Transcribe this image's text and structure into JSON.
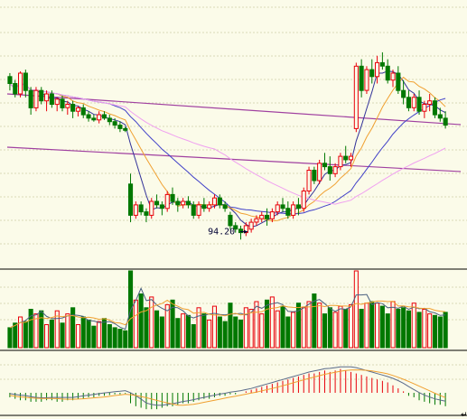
{
  "colors": {
    "background": "#fbfbe9",
    "grid": "#d8d8b8",
    "panel_border": "#000000",
    "up": "#e8000a",
    "down": "#007800",
    "ma_short": "#333399",
    "ma_mid": "#f0a030",
    "ma_long": "#4040c8",
    "ma_xlong": "#f0a0f0",
    "trend": "#a040a0",
    "vol_ma_a": "#4a6080",
    "vol_ma_b": "#f0a030",
    "macd_dif": "#5a6a8a",
    "macd_dea": "#f0a030"
  },
  "chart_data": {
    "type": "candlestick",
    "annotations": [
      {
        "text": "94.20",
        "arrow": "right",
        "points_to_candle": 46
      }
    ],
    "price_ylim": [
      70,
      220
    ],
    "candles": [
      [
        180,
        182,
        172,
        176
      ],
      [
        176,
        178,
        168,
        170
      ],
      [
        170,
        183,
        168,
        182
      ],
      [
        182,
        184,
        168,
        172
      ],
      [
        172,
        174,
        158,
        162
      ],
      [
        162,
        174,
        160,
        172
      ],
      [
        172,
        174,
        164,
        166
      ],
      [
        166,
        172,
        160,
        170
      ],
      [
        170,
        172,
        162,
        164
      ],
      [
        164,
        168,
        160,
        167
      ],
      [
        167,
        169,
        160,
        162
      ],
      [
        162,
        166,
        158,
        164
      ],
      [
        164,
        166,
        156,
        160
      ],
      [
        160,
        163,
        157,
        162
      ],
      [
        162,
        164,
        156,
        158
      ],
      [
        158,
        160,
        154,
        156
      ],
      [
        156,
        158,
        154,
        155
      ],
      [
        155,
        160,
        153,
        158
      ],
      [
        158,
        160,
        155,
        156
      ],
      [
        156,
        158,
        152,
        154
      ],
      [
        154,
        156,
        150,
        152
      ],
      [
        152,
        154,
        148,
        150
      ],
      [
        150,
        151,
        148,
        149
      ],
      [
        118,
        124,
        96,
        100
      ],
      [
        100,
        108,
        98,
        106
      ],
      [
        106,
        108,
        100,
        102
      ],
      [
        102,
        104,
        96,
        100
      ],
      [
        100,
        110,
        98,
        108
      ],
      [
        108,
        112,
        104,
        106
      ],
      [
        106,
        108,
        100,
        104
      ],
      [
        104,
        114,
        102,
        112
      ],
      [
        112,
        116,
        106,
        108
      ],
      [
        108,
        110,
        102,
        106
      ],
      [
        106,
        110,
        104,
        108
      ],
      [
        108,
        111,
        104,
        106
      ],
      [
        106,
        108,
        98,
        100
      ],
      [
        100,
        108,
        98,
        106
      ],
      [
        106,
        110,
        102,
        104
      ],
      [
        104,
        108,
        102,
        106
      ],
      [
        106,
        112,
        104,
        110
      ],
      [
        110,
        112,
        104,
        106
      ],
      [
        106,
        108,
        102,
        104
      ],
      [
        100,
        102,
        92,
        94
      ],
      [
        94,
        96,
        90,
        92
      ],
      [
        92,
        94,
        86,
        90
      ],
      [
        90,
        96,
        88,
        94
      ],
      [
        92,
        98,
        90,
        96
      ],
      [
        96,
        100,
        94,
        98
      ],
      [
        98,
        102,
        96,
        100
      ],
      [
        100,
        104,
        94,
        98
      ],
      [
        98,
        104,
        96,
        102
      ],
      [
        102,
        108,
        100,
        106
      ],
      [
        106,
        110,
        102,
        104
      ],
      [
        104,
        108,
        98,
        100
      ],
      [
        100,
        108,
        98,
        106
      ],
      [
        106,
        110,
        100,
        104
      ],
      [
        104,
        116,
        102,
        114
      ],
      [
        114,
        128,
        112,
        126
      ],
      [
        126,
        128,
        118,
        120
      ],
      [
        120,
        132,
        118,
        130
      ],
      [
        130,
        136,
        126,
        128
      ],
      [
        128,
        134,
        120,
        124
      ],
      [
        124,
        130,
        122,
        128
      ],
      [
        128,
        136,
        126,
        134
      ],
      [
        134,
        140,
        130,
        132
      ],
      [
        132,
        136,
        128,
        134
      ],
      [
        150,
        188,
        148,
        186
      ],
      [
        186,
        190,
        168,
        172
      ],
      [
        172,
        186,
        170,
        184
      ],
      [
        184,
        190,
        176,
        180
      ],
      [
        180,
        192,
        176,
        188
      ],
      [
        188,
        194,
        184,
        186
      ],
      [
        186,
        190,
        176,
        178
      ],
      [
        178,
        184,
        174,
        182
      ],
      [
        182,
        186,
        170,
        172
      ],
      [
        172,
        178,
        164,
        168
      ],
      [
        168,
        172,
        160,
        162
      ],
      [
        162,
        170,
        160,
        168
      ],
      [
        168,
        172,
        158,
        160
      ],
      [
        160,
        166,
        156,
        164
      ],
      [
        164,
        170,
        160,
        166
      ],
      [
        166,
        168,
        156,
        158
      ],
      [
        158,
        162,
        154,
        156
      ],
      [
        156,
        160,
        150,
        152
      ]
    ],
    "volume_ylim": [
      0,
      100
    ],
    "volume": [
      26,
      32,
      40,
      34,
      50,
      44,
      48,
      30,
      36,
      48,
      32,
      44,
      52,
      30,
      40,
      36,
      28,
      34,
      38,
      30,
      26,
      24,
      22,
      100,
      62,
      70,
      52,
      66,
      48,
      40,
      56,
      62,
      38,
      44,
      42,
      30,
      52,
      44,
      36,
      54,
      40,
      34,
      58,
      40,
      36,
      52,
      50,
      60,
      44,
      62,
      66,
      48,
      54,
      40,
      46,
      58,
      52,
      60,
      70,
      58,
      44,
      52,
      46,
      54,
      50,
      56,
      100,
      50,
      58,
      60,
      58,
      54,
      44,
      60,
      50,
      52,
      48,
      58,
      46,
      50,
      44,
      42,
      40,
      46
    ],
    "macd_ylim": [
      -40,
      40
    ],
    "macd": [
      -6,
      -8,
      -10,
      -10,
      -12,
      -12,
      -12,
      -10,
      -10,
      -12,
      -12,
      -10,
      -10,
      -8,
      -8,
      -6,
      -6,
      -4,
      -4,
      -3,
      -2,
      -2,
      -1,
      -14,
      -18,
      -20,
      -22,
      -22,
      -22,
      -20,
      -18,
      -18,
      -16,
      -14,
      -14,
      -12,
      -10,
      -8,
      -8,
      -6,
      -4,
      -4,
      -2,
      -2,
      0,
      2,
      4,
      6,
      8,
      10,
      12,
      14,
      16,
      18,
      20,
      22,
      24,
      26,
      26,
      28,
      30,
      28,
      30,
      32,
      30,
      28,
      26,
      24,
      22,
      20,
      18,
      16,
      14,
      10,
      6,
      2,
      -4,
      -6,
      -10,
      -12,
      -14,
      -16,
      -16,
      -18
    ]
  }
}
